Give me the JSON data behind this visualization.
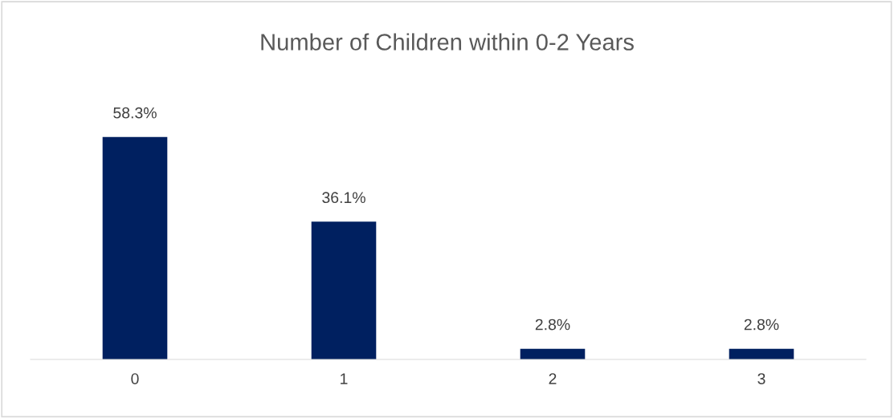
{
  "chart_data": {
    "type": "bar",
    "title": "Number of Children within 0-2 Years",
    "categories": [
      "0",
      "1",
      "2",
      "3"
    ],
    "values": [
      58.3,
      36.1,
      2.8,
      2.8
    ],
    "value_labels": [
      "58.3%",
      "36.1%",
      "2.8%",
      "2.8%"
    ],
    "color": "#002060"
  }
}
